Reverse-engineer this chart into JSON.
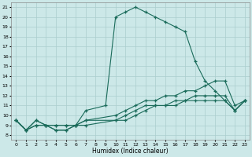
{
  "xlabel": "Humidex (Indice chaleur)",
  "bg_color": "#cce8e8",
  "grid_color": "#aacece",
  "line_color": "#1a6b5a",
  "xlim": [
    -0.5,
    23.5
  ],
  "ylim": [
    7.5,
    21.5
  ],
  "xticks": [
    0,
    1,
    2,
    3,
    4,
    5,
    6,
    7,
    8,
    9,
    10,
    11,
    12,
    13,
    14,
    15,
    16,
    17,
    18,
    19,
    20,
    21,
    22,
    23
  ],
  "yticks": [
    8,
    9,
    10,
    11,
    12,
    13,
    14,
    15,
    16,
    17,
    18,
    19,
    20,
    21
  ],
  "series": [
    {
      "x": [
        0,
        1,
        2,
        3,
        4,
        5,
        6,
        7,
        9,
        10,
        11,
        12,
        13,
        14,
        15,
        16,
        17,
        18,
        19,
        20,
        21,
        22,
        23
      ],
      "y": [
        9.5,
        8.5,
        9.5,
        9.0,
        9.0,
        9.0,
        9.0,
        10.5,
        11.0,
        20.0,
        20.5,
        21.0,
        20.5,
        20.0,
        19.5,
        19.0,
        18.5,
        15.5,
        13.5,
        12.5,
        11.5,
        10.5,
        11.5
      ]
    },
    {
      "x": [
        0,
        1,
        2,
        3,
        4,
        5,
        6,
        7,
        10,
        11,
        12,
        13,
        14,
        15,
        16,
        17,
        18,
        19,
        20,
        21,
        22,
        23
      ],
      "y": [
        9.5,
        8.5,
        9.5,
        9.0,
        9.0,
        9.0,
        9.0,
        9.5,
        10.0,
        10.5,
        11.0,
        11.5,
        11.5,
        12.0,
        12.0,
        12.5,
        12.5,
        13.0,
        13.5,
        13.5,
        11.0,
        11.5
      ]
    },
    {
      "x": [
        0,
        1,
        2,
        3,
        4,
        5,
        6,
        7,
        10,
        11,
        12,
        13,
        14,
        15,
        16,
        17,
        18,
        19,
        20,
        21,
        22,
        23
      ],
      "y": [
        9.5,
        8.5,
        9.0,
        9.0,
        8.5,
        8.5,
        9.0,
        9.5,
        9.5,
        10.0,
        10.5,
        11.0,
        11.0,
        11.0,
        11.5,
        11.5,
        12.0,
        12.0,
        12.0,
        12.0,
        10.5,
        11.5
      ]
    },
    {
      "x": [
        0,
        1,
        2,
        3,
        4,
        5,
        6,
        7,
        10,
        11,
        12,
        13,
        14,
        15,
        16,
        17,
        18,
        19,
        20,
        21,
        22,
        23
      ],
      "y": [
        9.5,
        8.5,
        9.0,
        9.0,
        8.5,
        8.5,
        9.0,
        9.0,
        9.5,
        9.5,
        10.0,
        10.5,
        11.0,
        11.0,
        11.0,
        11.5,
        11.5,
        11.5,
        11.5,
        11.5,
        10.5,
        11.5
      ]
    }
  ]
}
